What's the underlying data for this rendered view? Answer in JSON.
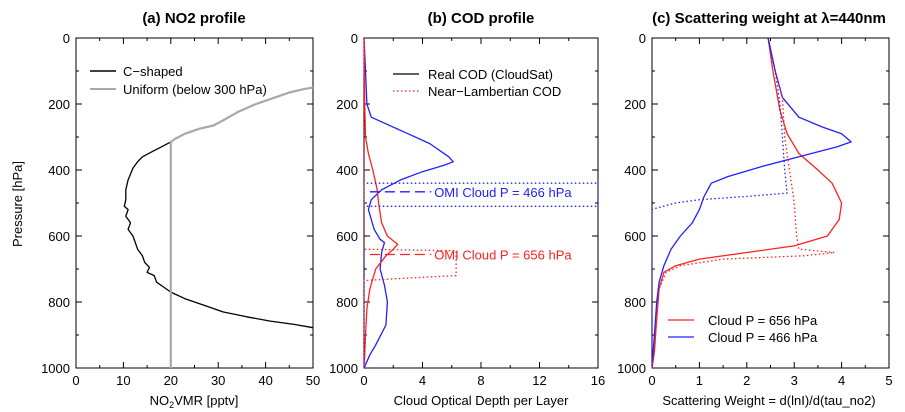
{
  "colors": {
    "black": "#000000",
    "gray": "#a8a8a8",
    "red": "#ff2020",
    "blue": "#2020ff"
  },
  "shared": {
    "ylabel": "Pressure [hPa]"
  },
  "chart_data": [
    {
      "type": "line",
      "title": "(a) NO2 profile",
      "xlabel_main": "NO",
      "xlabel_sub": "2",
      "xlabel_rest": "VMR [pptv]",
      "xlim": [
        0,
        50
      ],
      "ylim": [
        1000,
        0
      ],
      "xticks": [
        "0",
        "10",
        "20",
        "30",
        "40",
        "50"
      ],
      "yticks": [
        "0",
        "200",
        "400",
        "600",
        "800",
        "1000"
      ],
      "legend_position": "top-left",
      "series": [
        {
          "name": "C−shaped",
          "color": "#000000",
          "style": "solid",
          "points": [
            [
              50,
              150
            ],
            [
              48,
              155
            ],
            [
              45,
              165
            ],
            [
              42,
              180
            ],
            [
              38,
              200
            ],
            [
              34,
              225
            ],
            [
              31,
              250
            ],
            [
              29,
              265
            ],
            [
              26,
              275
            ],
            [
              23,
              290
            ],
            [
              21,
              305
            ],
            [
              20,
              315
            ],
            [
              18,
              330
            ],
            [
              16,
              345
            ],
            [
              14,
              360
            ],
            [
              13,
              375
            ],
            [
              12,
              395
            ],
            [
              11,
              430
            ],
            [
              10.5,
              460
            ],
            [
              10.5,
              490
            ],
            [
              10.2,
              510
            ],
            [
              11,
              520
            ],
            [
              10.5,
              540
            ],
            [
              11.5,
              560
            ],
            [
              11,
              580
            ],
            [
              12,
              600
            ],
            [
              12.5,
              620
            ],
            [
              13,
              640
            ],
            [
              14,
              660
            ],
            [
              14.5,
              680
            ],
            [
              15.5,
              695
            ],
            [
              15,
              710
            ],
            [
              16.5,
              720
            ],
            [
              17,
              740
            ],
            [
              18.5,
              755
            ],
            [
              20,
              770
            ],
            [
              23,
              790
            ],
            [
              27,
              810
            ],
            [
              31,
              830
            ],
            [
              36,
              845
            ],
            [
              41,
              858
            ],
            [
              46,
              868
            ],
            [
              50,
              878
            ]
          ]
        },
        {
          "name": "Uniform (below 300 hPa)",
          "color": "#a8a8a8",
          "style": "solid",
          "points": [
            [
              50,
              150
            ],
            [
              48,
              155
            ],
            [
              45,
              165
            ],
            [
              42,
              180
            ],
            [
              38,
              200
            ],
            [
              34,
              225
            ],
            [
              31,
              250
            ],
            [
              29,
              265
            ],
            [
              26,
              275
            ],
            [
              23,
              290
            ],
            [
              21,
              305
            ],
            [
              20,
              315
            ],
            [
              20,
              1000
            ]
          ]
        }
      ]
    },
    {
      "type": "line",
      "title": "(b) COD profile",
      "xlabel": "Cloud Optical Depth per Layer",
      "xlim": [
        0,
        16
      ],
      "ylim": [
        1000,
        0
      ],
      "xticks": [
        "0",
        "4",
        "8",
        "12",
        "16"
      ],
      "yticks": [
        "0",
        "200",
        "400",
        "600",
        "800",
        "1000"
      ],
      "legend_position": "top-right",
      "legend": [
        {
          "name": "Real COD (CloudSat)",
          "style": "solid",
          "color": "#000000"
        },
        {
          "name": "Near−Lambertian COD",
          "style": "dotted",
          "color": "#ff2020"
        }
      ],
      "series": [
        {
          "name": "blue real",
          "color": "#2020ff",
          "style": "solid",
          "points": [
            [
              0,
              0
            ],
            [
              0.1,
              100
            ],
            [
              0.2,
              200
            ],
            [
              0.5,
              240
            ],
            [
              1.5,
              260
            ],
            [
              3,
              290
            ],
            [
              4.5,
              320
            ],
            [
              5.8,
              360
            ],
            [
              6.1,
              375
            ],
            [
              5.5,
              385
            ],
            [
              4,
              405
            ],
            [
              2.5,
              430
            ],
            [
              1.2,
              460
            ],
            [
              0.5,
              490
            ],
            [
              0.3,
              520
            ],
            [
              0.5,
              550
            ],
            [
              0.7,
              580
            ],
            [
              1.1,
              610
            ],
            [
              1.4,
              620
            ],
            [
              1.2,
              650
            ],
            [
              1.1,
              700
            ],
            [
              1.4,
              750
            ],
            [
              1.6,
              800
            ],
            [
              1.5,
              870
            ],
            [
              0.8,
              930
            ],
            [
              0.4,
              960
            ],
            [
              0.1,
              990
            ],
            [
              0,
              1000
            ]
          ]
        },
        {
          "name": "red real",
          "color": "#ff2020",
          "style": "solid",
          "points": [
            [
              0,
              0
            ],
            [
              0.05,
              200
            ],
            [
              0.1,
              300
            ],
            [
              0.3,
              350
            ],
            [
              0.6,
              400
            ],
            [
              0.9,
              460
            ],
            [
              1.0,
              500
            ],
            [
              1.2,
              560
            ],
            [
              1.6,
              600
            ],
            [
              2.0,
              615
            ],
            [
              2.3,
              625
            ],
            [
              2.0,
              640
            ],
            [
              1.5,
              660
            ],
            [
              0.8,
              700
            ],
            [
              0.4,
              760
            ],
            [
              0.2,
              820
            ],
            [
              0.1,
              900
            ],
            [
              0.05,
              960
            ],
            [
              0,
              1000
            ]
          ]
        },
        {
          "name": "blue lambertian",
          "color": "#2020ff",
          "style": "dotted",
          "points": [
            [
              0,
              0
            ],
            [
              0,
              440
            ],
            [
              16,
              440
            ],
            [
              16,
              510
            ],
            [
              0,
              510
            ],
            [
              0,
              1000
            ]
          ]
        },
        {
          "name": "red lambertian",
          "color": "#ff2020",
          "style": "dotted",
          "points": [
            [
              0,
              0
            ],
            [
              0,
              640
            ],
            [
              6.3,
              645
            ],
            [
              6.3,
              720
            ],
            [
              4,
              725
            ],
            [
              0,
              735
            ],
            [
              0,
              1000
            ]
          ]
        },
        {
          "name": "omi blue marker",
          "color": "#2020ff",
          "style": "dashed",
          "points": [
            [
              0.4,
              466
            ],
            [
              4.6,
              466
            ]
          ]
        },
        {
          "name": "omi red marker",
          "color": "#ff2020",
          "style": "dashed",
          "points": [
            [
              0.4,
              656
            ],
            [
              4.6,
              656
            ]
          ]
        }
      ],
      "annotations": [
        {
          "text": "OMI Cloud P = 466 hPa",
          "x": 4.8,
          "y": 466,
          "color": "#2020ff"
        },
        {
          "text": "OMI Cloud P = 656 hPa",
          "x": 4.8,
          "y": 656,
          "color": "#ff2020"
        }
      ]
    },
    {
      "type": "line",
      "title": "(c) Scattering weight at λ=440nm",
      "xlabel": "Scattering Weight = d(lnI)/d(tau_no2)",
      "xlim": [
        0,
        5
      ],
      "ylim": [
        1000,
        0
      ],
      "xticks": [
        "0",
        "1",
        "2",
        "3",
        "4",
        "5"
      ],
      "yticks": [
        "0",
        "200",
        "400",
        "600",
        "800",
        "1000"
      ],
      "legend_position": "bottom-right",
      "series": [
        {
          "name": "Cloud P = 656 hPa",
          "color": "#ff2020",
          "style": "solid",
          "points": [
            [
              2.45,
              0
            ],
            [
              2.55,
              100
            ],
            [
              2.65,
              180
            ],
            [
              2.7,
              220
            ],
            [
              2.85,
              290
            ],
            [
              3.1,
              350
            ],
            [
              3.5,
              400
            ],
            [
              3.8,
              440
            ],
            [
              4.0,
              500
            ],
            [
              3.95,
              550
            ],
            [
              3.7,
              600
            ],
            [
              3.0,
              630
            ],
            [
              2.0,
              650
            ],
            [
              1.0,
              670
            ],
            [
              0.5,
              690
            ],
            [
              0.25,
              710
            ],
            [
              0.15,
              760
            ],
            [
              0.1,
              850
            ],
            [
              0.05,
              950
            ],
            [
              0,
              1000
            ]
          ]
        },
        {
          "name": "Cloud P = 466 hPa",
          "color": "#2020ff",
          "style": "solid",
          "points": [
            [
              2.45,
              0
            ],
            [
              2.6,
              100
            ],
            [
              2.75,
              180
            ],
            [
              3.1,
              240
            ],
            [
              3.6,
              270
            ],
            [
              4.0,
              290
            ],
            [
              4.2,
              315
            ],
            [
              3.9,
              330
            ],
            [
              3.1,
              360
            ],
            [
              2.3,
              390
            ],
            [
              1.6,
              420
            ],
            [
              1.25,
              440
            ],
            [
              1.1,
              480
            ],
            [
              1.0,
              520
            ],
            [
              0.85,
              560
            ],
            [
              0.6,
              600
            ],
            [
              0.4,
              640
            ],
            [
              0.25,
              690
            ],
            [
              0.15,
              740
            ],
            [
              0.1,
              800
            ],
            [
              0.05,
              900
            ],
            [
              0,
              1000
            ]
          ]
        },
        {
          "name": "red lambertian sw",
          "color": "#ff2020",
          "style": "dotted",
          "points": [
            [
              2.45,
              0
            ],
            [
              2.6,
              100
            ],
            [
              2.75,
              180
            ],
            [
              2.8,
              300
            ],
            [
              2.9,
              400
            ],
            [
              3.0,
              500
            ],
            [
              3.05,
              600
            ],
            [
              3.1,
              640
            ],
            [
              3.85,
              650
            ],
            [
              3.2,
              660
            ],
            [
              1.5,
              670
            ],
            [
              0.6,
              690
            ],
            [
              0.3,
              710
            ],
            [
              0.15,
              760
            ],
            [
              0.1,
              850
            ],
            [
              0.05,
              950
            ],
            [
              0,
              1000
            ]
          ]
        },
        {
          "name": "blue lambertian sw",
          "color": "#2020ff",
          "style": "dotted",
          "points": [
            [
              2.45,
              0
            ],
            [
              2.6,
              100
            ],
            [
              2.7,
              200
            ],
            [
              2.75,
              300
            ],
            [
              2.8,
              400
            ],
            [
              2.85,
              470
            ],
            [
              2.0,
              480
            ],
            [
              1.0,
              490
            ],
            [
              0.5,
              500
            ],
            [
              0.1,
              515
            ],
            [
              0,
              520
            ],
            [
              0,
              1000
            ]
          ]
        }
      ]
    }
  ]
}
